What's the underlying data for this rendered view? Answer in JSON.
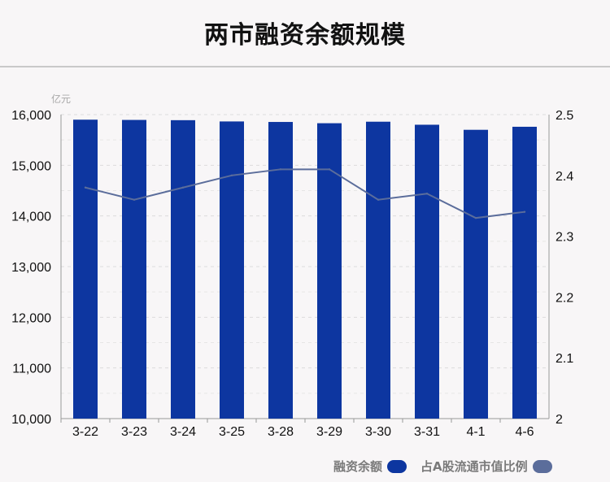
{
  "title": "两市融资余额规模",
  "chart_data": {
    "type": "bar",
    "categories": [
      "3-22",
      "3-23",
      "3-24",
      "3-25",
      "3-28",
      "3-29",
      "3-30",
      "3-31",
      "4-1",
      "4-6"
    ],
    "series": [
      {
        "name": "融资余额",
        "type": "bar",
        "axis": "left",
        "color": "#0d36a0",
        "values": [
          15900,
          15895,
          15890,
          15865,
          15855,
          15830,
          15860,
          15800,
          15700,
          15760
        ]
      },
      {
        "name": "占A股流通市值比例",
        "type": "line",
        "axis": "right",
        "color": "#5b6d9b",
        "values": [
          2.38,
          2.36,
          2.38,
          2.4,
          2.41,
          2.41,
          2.36,
          2.37,
          2.33,
          2.34
        ]
      }
    ],
    "y_left": {
      "unit": "亿元",
      "ylim": [
        10000,
        16000
      ],
      "ticks": [
        "10,000",
        "11,000",
        "12,000",
        "13,000",
        "14,000",
        "15,000",
        "16,000"
      ],
      "tick_values": [
        10000,
        11000,
        12000,
        13000,
        14000,
        15000,
        16000
      ]
    },
    "y_right": {
      "ylim": [
        2.0,
        2.5
      ],
      "ticks": [
        "2",
        "2.1",
        "2.2",
        "2.3",
        "2.4",
        "2.5"
      ],
      "tick_values": [
        2.0,
        2.1,
        2.2,
        2.3,
        2.4,
        2.5
      ]
    },
    "grid": true,
    "legend_position": "bottom-right"
  },
  "legend": {
    "items": [
      {
        "label": "融资余额",
        "color": "#0d36a0"
      },
      {
        "label": "占A股流通市值比例",
        "color": "#5b6d9b"
      }
    ]
  }
}
